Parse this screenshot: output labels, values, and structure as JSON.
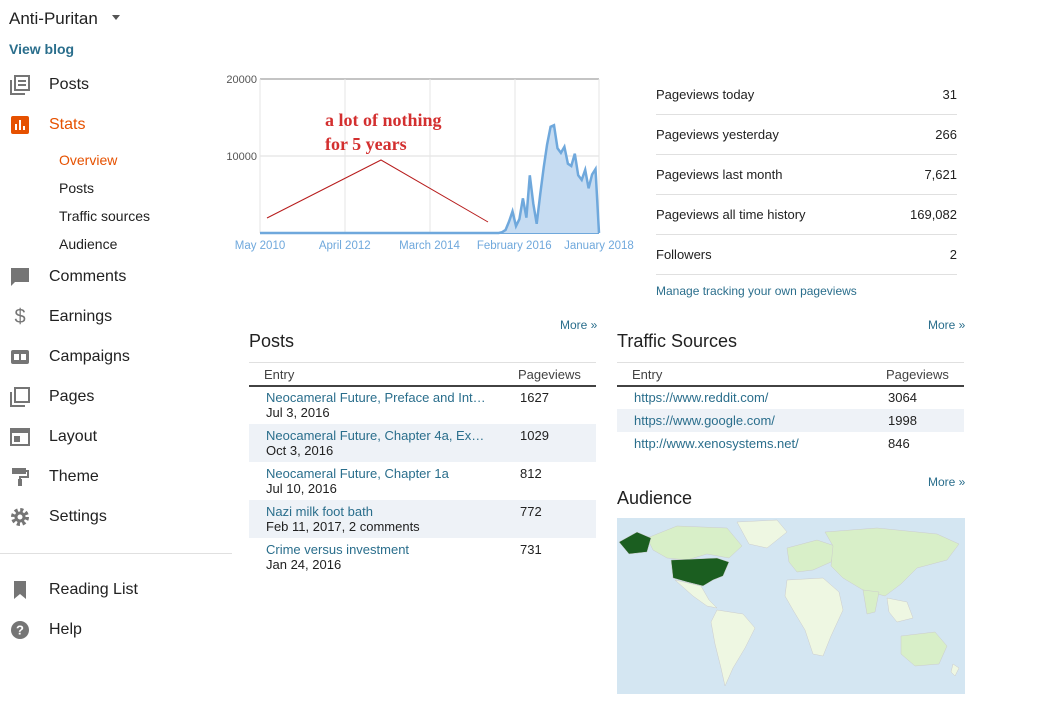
{
  "blog": {
    "title": "Anti-Puritan",
    "view_blog": "View blog"
  },
  "nav": [
    {
      "label": "Posts",
      "icon": "posts-icon"
    },
    {
      "label": "Stats",
      "icon": "stats-icon"
    },
    {
      "label": "Comments",
      "icon": "comments-icon"
    },
    {
      "label": "Earnings",
      "icon": "dollar-icon"
    },
    {
      "label": "Campaigns",
      "icon": "ad-icon"
    },
    {
      "label": "Pages",
      "icon": "pages-icon"
    },
    {
      "label": "Layout",
      "icon": "layout-icon"
    },
    {
      "label": "Theme",
      "icon": "paint-roller-icon"
    },
    {
      "label": "Settings",
      "icon": "gear-icon"
    },
    {
      "label": "Reading List",
      "icon": "bookmark-icon"
    },
    {
      "label": "Help",
      "icon": "help-icon"
    }
  ],
  "stats_sub": [
    "Overview",
    "Posts",
    "Traffic sources",
    "Audience"
  ],
  "colors": {
    "accent": "#e65100",
    "link": "#2a6e8c",
    "chart_line": "#6fa8dc",
    "chart_fill": "#c6dcf2",
    "annotation": "#d32f2f",
    "map_highlight": "#1b5e20"
  },
  "chart_data": {
    "type": "area",
    "y_ticks": [
      "20000",
      "10000"
    ],
    "ylim": [
      0,
      20000
    ],
    "x_ticks": [
      "May 2010",
      "April 2012",
      "March 2014",
      "February 2016",
      "January 2018"
    ],
    "annotation": [
      "a lot of nothing",
      "for 5 years"
    ],
    "series": [
      {
        "values": [
          0,
          0,
          0,
          0,
          0,
          0,
          0,
          0,
          0,
          0,
          0,
          0,
          0,
          0,
          0,
          0,
          0,
          0,
          0,
          0,
          0,
          0,
          0,
          0,
          0,
          0,
          0,
          0,
          0,
          0,
          0,
          0,
          0,
          0,
          0,
          0,
          0,
          0,
          0,
          0,
          0,
          0,
          0,
          0,
          0,
          0,
          0,
          0,
          0,
          0,
          0,
          0,
          0,
          0,
          0,
          0,
          0,
          0,
          0,
          0,
          0,
          0,
          0,
          0,
          0,
          0,
          0,
          0,
          0,
          0,
          100,
          400,
          1500,
          2800,
          900,
          1800,
          4500,
          2000,
          7500,
          3800,
          1200,
          5000,
          8500,
          11500,
          13800,
          14000,
          11000,
          10400,
          11200,
          9000,
          8700,
          10300,
          7500,
          6900,
          8200,
          5800,
          7600,
          8300,
          0
        ]
      }
    ]
  },
  "stats": [
    {
      "label": "Pageviews today",
      "value": "31"
    },
    {
      "label": "Pageviews yesterday",
      "value": "266"
    },
    {
      "label": "Pageviews last month",
      "value": "7,621"
    },
    {
      "label": "Pageviews all time history",
      "value": "169,082"
    },
    {
      "label": "Followers",
      "value": "2"
    }
  ],
  "manage_link": "Manage tracking your own pageviews",
  "more": "More »",
  "posts": {
    "title": "Posts",
    "col_entry": "Entry",
    "col_views": "Pageviews",
    "rows": [
      {
        "title": "Neocameral Future, Preface and Int…",
        "meta": "Jul 3, 2016",
        "views": "1627"
      },
      {
        "title": "Neocameral Future, Chapter 4a, Ex…",
        "meta": "Oct 3, 2016",
        "views": "1029"
      },
      {
        "title": "Neocameral Future, Chapter 1a",
        "meta": "Jul 10, 2016",
        "views": "812"
      },
      {
        "title": "Nazi milk foot bath",
        "meta": "Feb 11, 2017, 2 comments",
        "views": "772"
      },
      {
        "title": "Crime versus investment",
        "meta": "Jan 24, 2016",
        "views": "731"
      }
    ]
  },
  "traffic": {
    "title": "Traffic Sources",
    "col_entry": "Entry",
    "col_views": "Pageviews",
    "rows": [
      {
        "url": "https://www.reddit.com/",
        "views": "3064"
      },
      {
        "url": "https://www.google.com/",
        "views": "1998"
      },
      {
        "url": "http://www.xenosystems.net/",
        "views": "846"
      }
    ]
  },
  "audience": {
    "title": "Audience"
  }
}
